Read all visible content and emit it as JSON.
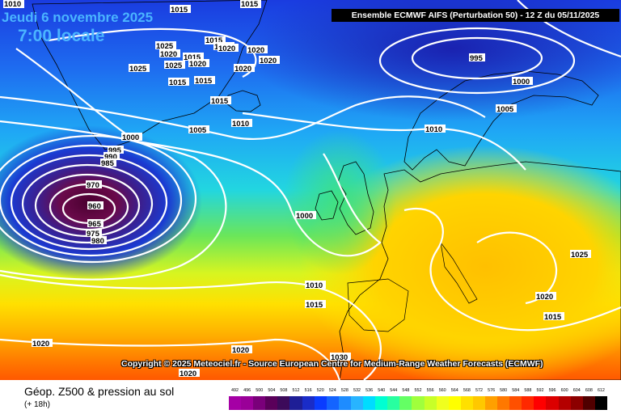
{
  "header": {
    "date_line": "Jeudi 6 novembre 2025",
    "time_line": "7:00 locale",
    "model_info": "Ensemble ECMWF AIFS  (Perturbation 50)  -  12 Z du 05/11/2025"
  },
  "copyright": "Copyright © 2025 Meteociel.fr - Source European Centre for Medium-Range Weather Forecasts (ECMWF)",
  "footer": {
    "title": "Géop. Z500 & pression au sol",
    "subtitle": "(+ 18h)"
  },
  "legend": {
    "values": [
      "492",
      "496",
      "500",
      "504",
      "508",
      "512",
      "516",
      "520",
      "524",
      "528",
      "532",
      "536",
      "540",
      "544",
      "548",
      "552",
      "556",
      "560",
      "564",
      "568",
      "572",
      "576",
      "580",
      "584",
      "588",
      "592",
      "596",
      "600",
      "604",
      "608",
      "612"
    ],
    "colors": [
      "#a500a5",
      "#9a0098",
      "#7a007a",
      "#5a005a",
      "#3c0a5a",
      "#1e1e96",
      "#1a2cc8",
      "#0a3cff",
      "#1464ff",
      "#1e8cff",
      "#28b4ff",
      "#00dcff",
      "#00ffd2",
      "#28ffa0",
      "#64ff64",
      "#a0ff3c",
      "#c8ff28",
      "#f0ff1e",
      "#ffff00",
      "#ffe000",
      "#ffc800",
      "#ffa000",
      "#ff7800",
      "#ff5000",
      "#ff2800",
      "#ff0000",
      "#dc0000",
      "#b40000",
      "#8c0000",
      "#500000",
      "#000000"
    ]
  },
  "map": {
    "pressure_labels": [
      {
        "text": "1010"
      },
      {
        "text": "1015"
      },
      {
        "text": "1015"
      },
      {
        "text": "1015"
      },
      {
        "text": "1025"
      },
      {
        "text": "1015"
      },
      {
        "text": "1020"
      },
      {
        "text": "1020"
      },
      {
        "text": "1020"
      },
      {
        "text": "1025"
      },
      {
        "text": "1015"
      },
      {
        "text": "1020"
      },
      {
        "text": "1020"
      },
      {
        "text": "1025"
      },
      {
        "text": "1020"
      },
      {
        "text": "1015"
      },
      {
        "text": "1015"
      },
      {
        "text": "1015"
      },
      {
        "text": "1005"
      },
      {
        "text": "1010"
      },
      {
        "text": "1000"
      },
      {
        "text": "995"
      },
      {
        "text": "990"
      },
      {
        "text": "985"
      },
      {
        "text": "970"
      },
      {
        "text": "960"
      },
      {
        "text": "965"
      },
      {
        "text": "975"
      },
      {
        "text": "980"
      },
      {
        "text": "1000"
      },
      {
        "text": "1010"
      },
      {
        "text": "1015"
      },
      {
        "text": "1020"
      },
      {
        "text": "1020"
      },
      {
        "text": "1020"
      },
      {
        "text": "1030"
      },
      {
        "text": "995"
      },
      {
        "text": "1000"
      },
      {
        "text": "1005"
      },
      {
        "text": "1010"
      },
      {
        "text": "1025"
      },
      {
        "text": "1020"
      },
      {
        "text": "1015"
      }
    ]
  }
}
